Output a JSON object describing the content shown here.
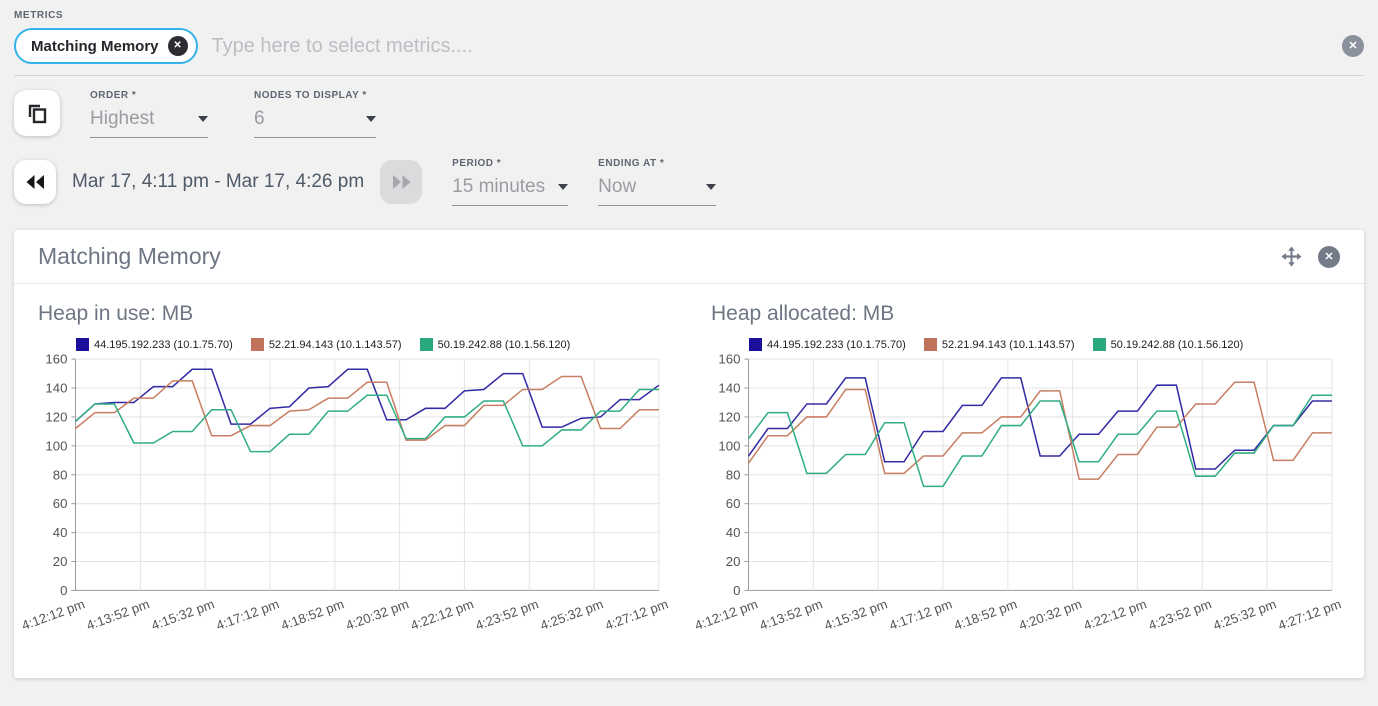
{
  "metrics": {
    "label": "METRICS",
    "chip_text": "Matching Memory",
    "placeholder": "Type here to select metrics...."
  },
  "controls": {
    "order": {
      "label": "ORDER *",
      "value": "Highest"
    },
    "nodes": {
      "label": "NODES TO DISPLAY *",
      "value": "6"
    },
    "time_range": "Mar 17, 4:11 pm - Mar 17, 4:26 pm",
    "period": {
      "label": "PERIOD *",
      "value": "15 minutes"
    },
    "ending_at": {
      "label": "ENDING AT *",
      "value": "Now"
    }
  },
  "card": {
    "title": "Matching Memory"
  },
  "colors": {
    "chip_border": "#35b2e8",
    "icon_gray": "#737b89",
    "series_navy": "#332ba5",
    "series_orange": "#c87f63",
    "series_green": "#31ae84"
  },
  "chart_data": [
    {
      "type": "line",
      "title": "Heap in use: MB",
      "ylabel": "",
      "xlabel": "",
      "ylim": [
        0,
        160
      ],
      "yticks": [
        0,
        20,
        40,
        60,
        80,
        100,
        120,
        140,
        160
      ],
      "grid": true,
      "legend_position": "top",
      "x_labels": [
        "4:12:12 pm",
        "4:13:52 pm",
        "4:15:32 pm",
        "4:17:12 pm",
        "4:18:52 pm",
        "4:20:32 pm",
        "4:22:12 pm",
        "4:23:52 pm",
        "4:25:32 pm",
        "4:27:12 pm"
      ],
      "series": [
        {
          "name": "44.195.192.233 (10.1.75.70)",
          "color": "#332ba5",
          "swatch": "#1c0f9c",
          "values": [
            117,
            129,
            130,
            130,
            141,
            141,
            153,
            153,
            115,
            115,
            126,
            127,
            140,
            141,
            153,
            153,
            118,
            118,
            126,
            126,
            138,
            139,
            150,
            150,
            113,
            113,
            119,
            120,
            132,
            132,
            142
          ]
        },
        {
          "name": "52.21.94.143 (10.1.143.57)",
          "color": "#c87f63",
          "swatch": "#c0735a",
          "values": [
            112,
            123,
            123,
            133,
            133,
            145,
            145,
            107,
            107,
            114,
            114,
            124,
            125,
            133,
            133,
            144,
            144,
            104,
            104,
            114,
            114,
            128,
            128,
            139,
            139,
            148,
            148,
            112,
            112,
            125,
            125
          ]
        },
        {
          "name": "50.19.242.88 (10.1.56.120)",
          "color": "#31ae84",
          "swatch": "#2aaa7c",
          "values": [
            117,
            129,
            129,
            102,
            102,
            110,
            110,
            125,
            125,
            96,
            96,
            108,
            108,
            124,
            124,
            135,
            135,
            105,
            105,
            120,
            120,
            131,
            131,
            100,
            100,
            111,
            111,
            124,
            124,
            139,
            139
          ]
        }
      ]
    },
    {
      "type": "line",
      "title": "Heap allocated: MB",
      "ylabel": "",
      "xlabel": "",
      "ylim": [
        0,
        160
      ],
      "yticks": [
        0,
        20,
        40,
        60,
        80,
        100,
        120,
        140,
        160
      ],
      "grid": true,
      "legend_position": "top",
      "x_labels": [
        "4:12:12 pm",
        "4:13:52 pm",
        "4:15:32 pm",
        "4:17:12 pm",
        "4:18:52 pm",
        "4:20:32 pm",
        "4:22:12 pm",
        "4:23:52 pm",
        "4:25:32 pm",
        "4:27:12 pm"
      ],
      "series": [
        {
          "name": "44.195.192.233 (10.1.75.70)",
          "color": "#332ba5",
          "swatch": "#1c0f9c",
          "values": [
            93,
            112,
            112,
            129,
            129,
            147,
            147,
            89,
            89,
            110,
            110,
            128,
            128,
            147,
            147,
            93,
            93,
            108,
            108,
            124,
            124,
            142,
            142,
            84,
            84,
            97,
            97,
            114,
            114,
            131,
            131
          ]
        },
        {
          "name": "52.21.94.143 (10.1.143.57)",
          "color": "#c87f63",
          "swatch": "#c0735a",
          "values": [
            88,
            107,
            107,
            120,
            120,
            139,
            139,
            81,
            81,
            93,
            93,
            109,
            109,
            120,
            120,
            138,
            138,
            77,
            77,
            94,
            94,
            113,
            113,
            129,
            129,
            144,
            144,
            90,
            90,
            109,
            109
          ]
        },
        {
          "name": "50.19.242.88 (10.1.56.120)",
          "color": "#31ae84",
          "swatch": "#2aaa7c",
          "values": [
            105,
            123,
            123,
            81,
            81,
            94,
            94,
            116,
            116,
            72,
            72,
            93,
            93,
            114,
            114,
            131,
            131,
            89,
            89,
            108,
            108,
            124,
            124,
            79,
            79,
            95,
            95,
            114,
            114,
            135,
            135
          ]
        }
      ]
    }
  ]
}
